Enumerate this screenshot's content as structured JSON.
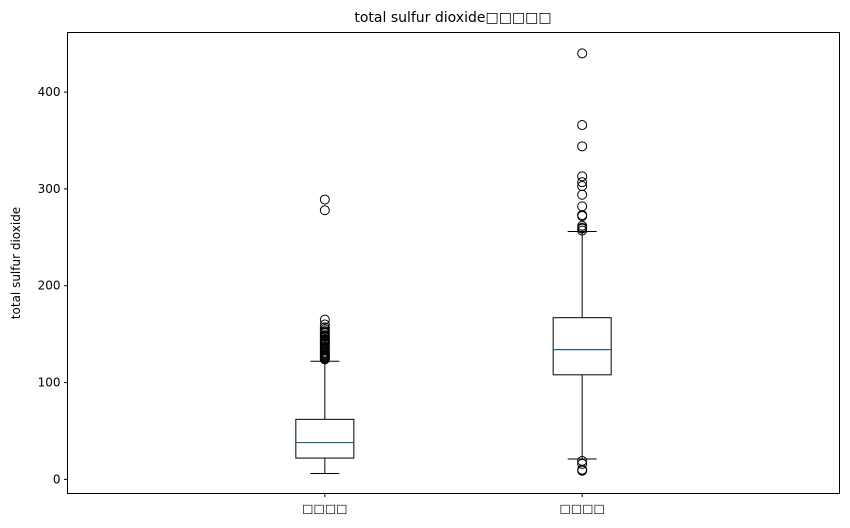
{
  "chart_data": {
    "type": "box",
    "title": "total sulfur dioxide□□□□□",
    "xlabel": "",
    "ylabel": "total sulfur dioxide",
    "ylim": [
      -14.6,
      461.6
    ],
    "yticks": [
      0,
      100,
      200,
      300,
      400
    ],
    "grid": false,
    "median_color": "#1f5f8b",
    "categories": [
      "□□□□",
      "□□□□"
    ],
    "boxes": [
      {
        "whisker_low": 6,
        "q1": 22,
        "median": 38,
        "q3": 62,
        "whisker_high": 122,
        "outliers": [
          124,
          125,
          126,
          127,
          128,
          129,
          130,
          131,
          133,
          134,
          135,
          136,
          137,
          139,
          140,
          141,
          142,
          143,
          144,
          145,
          147,
          148,
          149,
          151,
          152,
          153,
          155,
          157,
          160,
          165,
          278,
          289
        ]
      },
      {
        "whisker_low": 21,
        "q1": 108,
        "median": 134,
        "q3": 167,
        "whisker_high": 256,
        "outliers": [
          9,
          10,
          16,
          19,
          257,
          259,
          260,
          262,
          272,
          273,
          282,
          294,
          303,
          307,
          313,
          344,
          366,
          440
        ]
      }
    ]
  }
}
